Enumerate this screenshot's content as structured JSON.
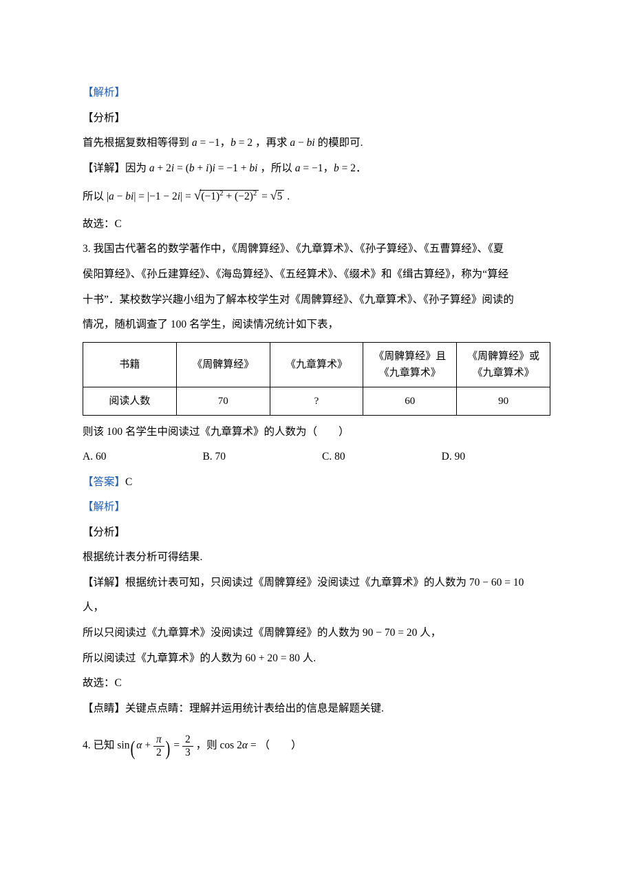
{
  "labels": {
    "analysis_header": "【解析】",
    "method": "【分析】",
    "detail": "【详解】",
    "answer": "【答案】",
    "hint": "【点睛】"
  },
  "q2": {
    "method_text": "首先根据复数相等得到",
    "a_eq": "a = −1",
    "b_eq": "b = 2",
    "method_tail": "，再求 a − bi 的模即可.",
    "detail_prefix": "因为",
    "eq1_left": "a + 2i = (b + i)i = −1 + bi",
    "detail_mid": "，所以",
    "detail_end": "，",
    "so": "所以",
    "final_lhs": "|a − bi| = |−1 − 2i| =",
    "sqrt_inner": "(−1)² + (−2)²",
    "sqrt_result": "√5",
    "conclude": "故选：C"
  },
  "q3": {
    "num": "3.",
    "stem1": "我国古代著名的数学著作中，《周髀算经》、《九章算术》、《孙子算经》、《五曹算经》、《夏",
    "stem2": "侯阳算经》、《孙丘建算经》、《海岛算经》、《五经算术》、《缀术》和《缉古算经》，称为“算经",
    "stem3": "十书”．某校数学兴趣小组为了解本校学生对《周髀算经》、《九章算术》、《孙子算经》阅读的",
    "stem4": "情况，随机调查了 100 名学生，阅读情况统计如下表，",
    "table": {
      "headers": [
        "书籍",
        "《周髀算经》",
        "《九章算术》",
        "《周髀算经》且《九章算术》",
        "《周髀算经》或《九章算术》"
      ],
      "row_label": "阅读人数",
      "row": [
        "70",
        "?",
        "60",
        "90"
      ]
    },
    "after_table": "则该 100 名学生中阅读过《九章算术》的人数为（　　）",
    "options": {
      "A": "A.  60",
      "B": "B.  70",
      "C": "C.  80",
      "D": "D.  90"
    },
    "answer": "C",
    "method_text": "根据统计表分析可得结果.",
    "detail1": "根据统计表可知，只阅读过《周髀算经》没阅读过《九章算术》的人数为 70 − 60 = 10",
    "detail1_tail": "人，",
    "detail2": "所以只阅读过《九章算术》没阅读过《周髀算经》的人数为 90 − 70 = 20 人，",
    "detail3": "所以阅读过《九章算术》的人数为 60 + 20 = 80 人.",
    "conclude": "故选：C",
    "hint_text": "关键点点睛：理解并运用统计表给出的信息是解题关键."
  },
  "q4": {
    "num": "4.",
    "prefix": "已知",
    "sin": "sin",
    "alpha": "α",
    "plus": "+",
    "pi": "π",
    "two": "2",
    "eq": "=",
    "frac_num": "2",
    "frac_den": "3",
    "mid": "，则",
    "cos": "cos 2α",
    "tail": " = （　　）"
  }
}
